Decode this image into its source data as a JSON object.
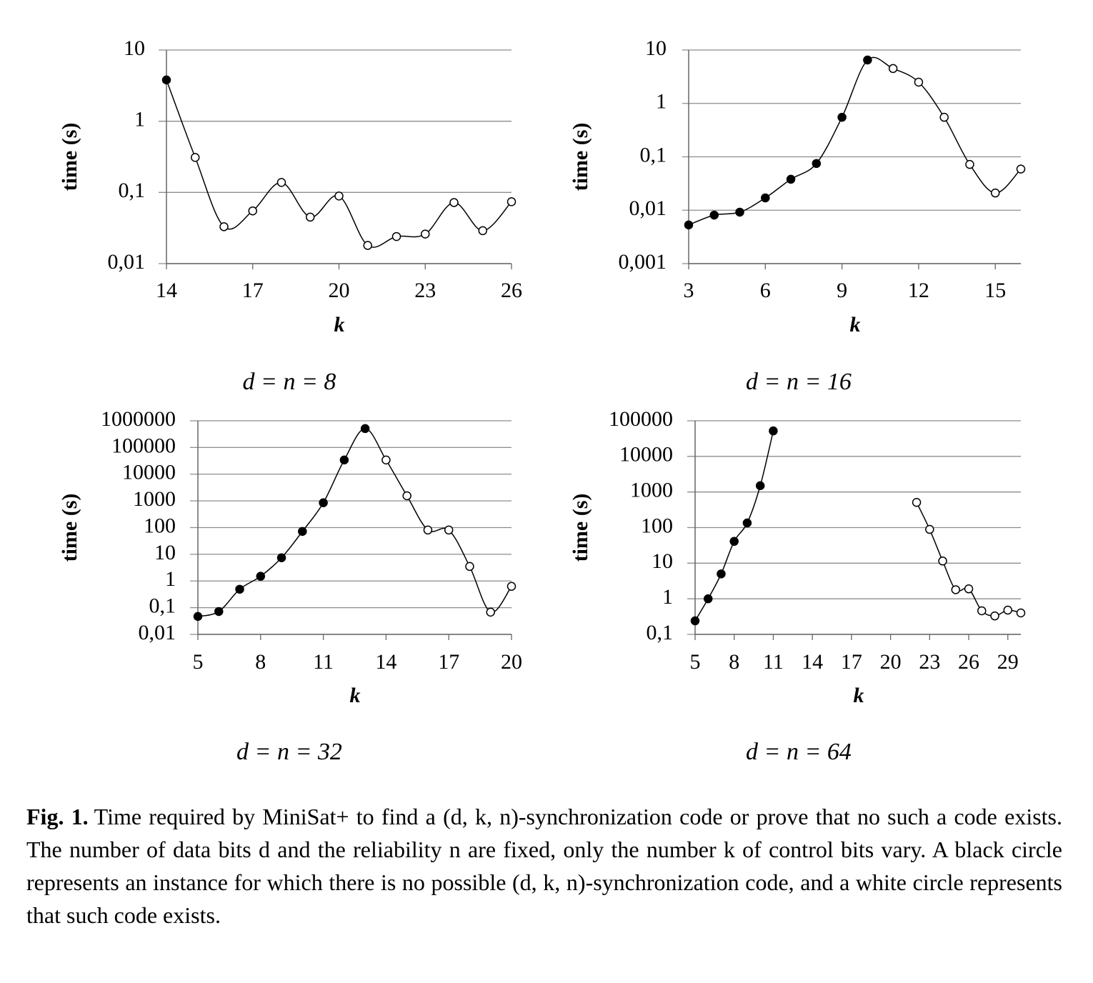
{
  "chart_data": [
    {
      "type": "line",
      "subtitle": "d = n = 8",
      "xlabel": "k",
      "ylabel": "time (s)",
      "color": "#000000",
      "log_y": true,
      "grid": true,
      "x": [
        14,
        15,
        16,
        17,
        18,
        19,
        20,
        21,
        22,
        23,
        24,
        25,
        26
      ],
      "values": [
        3.8,
        0.31,
        0.033,
        0.055,
        0.138,
        0.045,
        0.089,
        0.018,
        0.024,
        0.026,
        0.072,
        0.029,
        0.074
      ],
      "marker_fill": [
        "#000000",
        "#ffffff",
        "#ffffff",
        "#ffffff",
        "#ffffff",
        "#ffffff",
        "#ffffff",
        "#ffffff",
        "#ffffff",
        "#ffffff",
        "#ffffff",
        "#ffffff",
        "#ffffff"
      ],
      "xlim": [
        14,
        26
      ],
      "xticks": [
        14,
        17,
        20,
        23,
        26
      ],
      "ylim": [
        0.01,
        10
      ],
      "yticks": [
        {
          "value": 0.01,
          "label": "0,01"
        },
        {
          "value": 0.1,
          "label": "0,1"
        },
        1,
        10
      ]
    },
    {
      "type": "line",
      "subtitle": "d = n = 16",
      "xlabel": "k",
      "ylabel": "time (s)",
      "color": "#000000",
      "log_y": true,
      "grid": true,
      "x": [
        3,
        4,
        5,
        6,
        7,
        8,
        9,
        10,
        11,
        12,
        13,
        14,
        15,
        16
      ],
      "values": [
        0.0053,
        0.0081,
        0.0092,
        0.017,
        0.038,
        0.075,
        0.55,
        6.5,
        4.5,
        2.5,
        0.55,
        0.072,
        0.021,
        0.059
      ],
      "marker_fill": [
        "#000000",
        "#000000",
        "#000000",
        "#000000",
        "#000000",
        "#000000",
        "#000000",
        "#000000",
        "#ffffff",
        "#ffffff",
        "#ffffff",
        "#ffffff",
        "#ffffff",
        "#ffffff"
      ],
      "xlim": [
        3,
        16
      ],
      "xticks": [
        3,
        6,
        9,
        12,
        15
      ],
      "ylim": [
        0.001,
        10
      ],
      "yticks": [
        {
          "value": 0.001,
          "label": "0,001"
        },
        {
          "value": 0.01,
          "label": "0,01"
        },
        {
          "value": 0.1,
          "label": "0,1"
        },
        1,
        10
      ]
    },
    {
      "type": "line",
      "subtitle": "d = n = 32",
      "xlabel": "k",
      "ylabel": "time (s)",
      "color": "#000000",
      "log_y": true,
      "grid": true,
      "x": [
        5,
        6,
        7,
        8,
        9,
        10,
        11,
        12,
        13,
        14,
        15,
        16,
        17,
        18,
        19,
        20
      ],
      "values": [
        0.047,
        0.072,
        0.49,
        1.5,
        7.4,
        72,
        850,
        34000,
        510000,
        34000,
        1550,
        81,
        81,
        3.5,
        0.068,
        0.63
      ],
      "marker_fill": [
        "#000000",
        "#000000",
        "#000000",
        "#000000",
        "#000000",
        "#000000",
        "#000000",
        "#000000",
        "#000000",
        "#ffffff",
        "#ffffff",
        "#ffffff",
        "#ffffff",
        "#ffffff",
        "#ffffff",
        "#ffffff"
      ],
      "xlim": [
        5,
        20
      ],
      "xticks": [
        5,
        8,
        11,
        14,
        17,
        20
      ],
      "ylim": [
        0.01,
        1000000
      ],
      "yticks": [
        {
          "value": 0.01,
          "label": "0,01"
        },
        {
          "value": 0.1,
          "label": "0,1"
        },
        1,
        10,
        100,
        1000,
        10000,
        100000,
        1000000
      ]
    },
    {
      "type": "line",
      "subtitle": "d = n = 64",
      "xlabel": "k",
      "ylabel": "time (s)",
      "color": "#000000",
      "log_y": true,
      "grid": true,
      "x": [
        5,
        6,
        7,
        8,
        9,
        10,
        11,
        12,
        13,
        14,
        15,
        16,
        17,
        18,
        19,
        20,
        21,
        22,
        23,
        24,
        25,
        26,
        27,
        28,
        29,
        30
      ],
      "values": [
        0.24,
        1.0,
        5.0,
        41,
        135,
        1500,
        52000,
        null,
        null,
        null,
        null,
        null,
        null,
        null,
        null,
        null,
        null,
        510,
        89,
        11.5,
        1.8,
        1.9,
        0.46,
        0.33,
        0.48,
        0.4
      ],
      "marker_fill": [
        "#000000",
        "#000000",
        "#000000",
        "#000000",
        "#000000",
        "#000000",
        "#000000",
        null,
        null,
        null,
        null,
        null,
        null,
        null,
        null,
        null,
        null,
        "#ffffff",
        "#ffffff",
        "#ffffff",
        "#ffffff",
        "#ffffff",
        "#ffffff",
        "#ffffff",
        "#ffffff",
        "#ffffff"
      ],
      "xlim": [
        5,
        30
      ],
      "xticks": [
        5,
        8,
        11,
        14,
        17,
        20,
        23,
        26,
        29
      ],
      "ylim": [
        0.1,
        100000
      ],
      "yticks": [
        {
          "value": 0.1,
          "label": "0,1"
        },
        1,
        10,
        100,
        1000,
        10000,
        100000
      ]
    }
  ],
  "caption": {
    "label": "Fig. 1.",
    "text": "Time required by MiniSat+ to find a (d, k, n)-synchronization code or prove that no such a code exists. The number of data bits d and the reliability n are fixed, only the number k of control bits vary. A black circle represents an instance for which there is no possible (d, k, n)-synchronization code, and a white circle represents that such code exists."
  }
}
